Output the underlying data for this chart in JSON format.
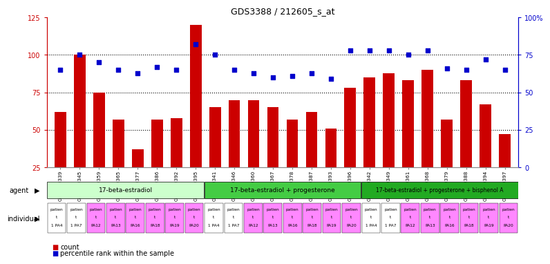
{
  "title": "GDS3388 / 212605_s_at",
  "gsm_labels": [
    "GSM259339",
    "GSM259345",
    "GSM259359",
    "GSM259365",
    "GSM259377",
    "GSM259386",
    "GSM259392",
    "GSM259395",
    "GSM259341",
    "GSM259346",
    "GSM259360",
    "GSM259367",
    "GSM259378",
    "GSM259387",
    "GSM259393",
    "GSM259396",
    "GSM259342",
    "GSM259349",
    "GSM259361",
    "GSM259368",
    "GSM259379",
    "GSM259388",
    "GSM259394",
    "GSM259397"
  ],
  "counts": [
    62,
    100,
    75,
    57,
    37,
    57,
    58,
    120,
    65,
    70,
    70,
    65,
    57,
    62,
    51,
    78,
    85,
    88,
    83,
    90,
    57,
    83,
    67,
    47
  ],
  "percentile_ranks_left_scale": [
    90,
    100,
    95,
    90,
    88,
    92,
    90,
    107,
    100,
    90,
    88,
    85,
    86,
    88,
    84,
    103,
    103,
    103,
    100,
    103,
    91,
    90,
    97,
    90
  ],
  "bar_color": "#cc0000",
  "dot_color": "#0000cc",
  "agent_groups": [
    {
      "label": "17-beta-estradiol",
      "start": 0,
      "end": 8,
      "color": "#ccffcc"
    },
    {
      "label": "17-beta-estradiol + progesterone",
      "start": 8,
      "end": 16,
      "color": "#44cc44"
    },
    {
      "label": "17-beta-estradiol + progesterone + bisphenol A",
      "start": 16,
      "end": 24,
      "color": "#22aa22"
    }
  ],
  "individual_labels_line1": [
    "patien",
    "patien",
    "patien",
    "patien",
    "patien",
    "patien",
    "patien",
    "patien",
    "patien",
    "patien",
    "patien",
    "patien",
    "patien",
    "patien",
    "patien",
    "patien",
    "patien",
    "patien",
    "patien",
    "patien",
    "patien",
    "patien",
    "patien",
    "patien"
  ],
  "individual_labels_line2": [
    "t",
    "t",
    "t",
    "t",
    "t",
    "t",
    "t",
    "t",
    "t",
    "t",
    "t",
    "t",
    "t",
    "t",
    "t",
    "t",
    "t",
    "t",
    "t",
    "t",
    "t",
    "t",
    "t",
    "t"
  ],
  "individual_labels_line3": [
    "1 PA4",
    "1 PA7",
    "PA12",
    "PA13",
    "PA16",
    "PA18",
    "PA19",
    "PA20",
    "1 PA4",
    "1 PA7",
    "PA12",
    "PA13",
    "PA16",
    "PA18",
    "PA19",
    "PA20",
    "1 PA4",
    "1 PA7",
    "PA12",
    "PA13",
    "PA16",
    "PA18",
    "PA19",
    "PA20"
  ],
  "individual_colors": [
    "#ffffff",
    "#ffffff",
    "#ff88ff",
    "#ff88ff",
    "#ff88ff",
    "#ff88ff",
    "#ff88ff",
    "#ff88ff",
    "#ffffff",
    "#ffffff",
    "#ff88ff",
    "#ff88ff",
    "#ff88ff",
    "#ff88ff",
    "#ff88ff",
    "#ff88ff",
    "#ffffff",
    "#ffffff",
    "#ff88ff",
    "#ff88ff",
    "#ff88ff",
    "#ff88ff",
    "#ff88ff",
    "#ff88ff"
  ],
  "ylim_left": [
    25,
    125
  ],
  "ylim_right": [
    0,
    100
  ],
  "yticks_left": [
    25,
    50,
    75,
    100,
    125
  ],
  "yticks_right": [
    0,
    25,
    50,
    75,
    100
  ],
  "bg_color": "#ffffff",
  "bar_width": 0.6
}
